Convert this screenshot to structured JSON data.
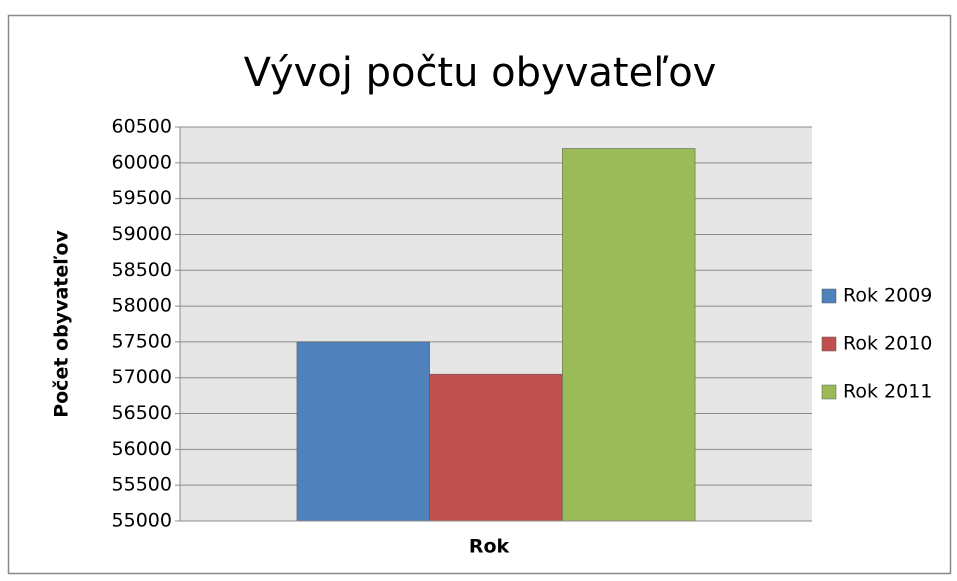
{
  "chart_data": {
    "type": "bar",
    "title": "Vývoj počtu obyvateľov",
    "x_label": "Rok",
    "y_label": "Počet obyvateľov",
    "categories": [
      null
    ],
    "series": [
      {
        "name": "Rok 2009",
        "color": "#4f81bd",
        "values": [
          57500
        ]
      },
      {
        "name": "Rok 2010",
        "color": "#c0504d",
        "values": [
          57050
        ]
      },
      {
        "name": "Rok 2011",
        "color": "#9bbb59",
        "values": [
          60200
        ]
      }
    ],
    "ylim": [
      55000,
      60500
    ],
    "yticks": [
      55000,
      55500,
      56000,
      56500,
      57000,
      57500,
      58000,
      58500,
      59000,
      59500,
      60000,
      60500
    ],
    "grid": true,
    "legend": "right"
  }
}
